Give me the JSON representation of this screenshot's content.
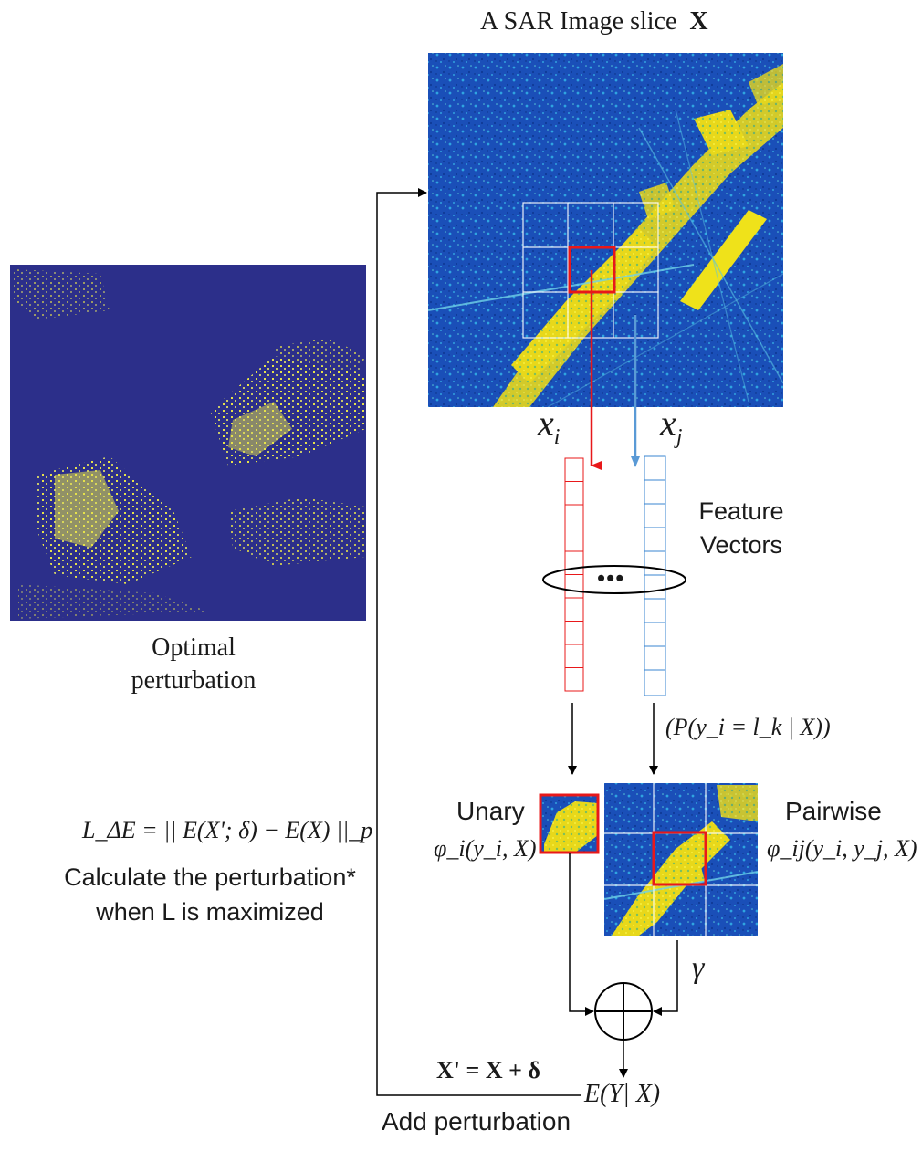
{
  "sar_title": "A SAR Image slice",
  "sar_title_symbol": "X",
  "perturbation_label_line1": "Optimal",
  "perturbation_label_line2": "perturbation",
  "xi_label": "x",
  "xi_sub": "i",
  "xj_label": "x",
  "xj_sub": "j",
  "feature_label_line1": "Feature",
  "feature_label_line2": "Vectors",
  "ellipsis": "•••",
  "prob_formula": "(P(y_i = l_k | X))",
  "unary_label": "Unary",
  "unary_formula": "φ_i(y_i, X)",
  "pairwise_label": "Pairwise",
  "pairwise_formula": "φ_ij(y_i, y_j, X)",
  "gamma": "γ",
  "loss_formula": "L_ΔE = || E(X'; δ) − E(X) ||_p",
  "calc_line1": "Calculate the perturbation*",
  "calc_line2": "when  L is maximized",
  "update_formula": "X' = X + δ",
  "energy_formula": "E(Y| X)",
  "add_perturbation": "Add perturbation",
  "colors": {
    "sar_blue": "#1a4fb8",
    "sar_yellow": "#f2e21a",
    "perturb_bg": "#2c2f8a",
    "red": "#e8181a",
    "blue": "#3a86d0",
    "arrow_blue": "#5a9ad6"
  }
}
